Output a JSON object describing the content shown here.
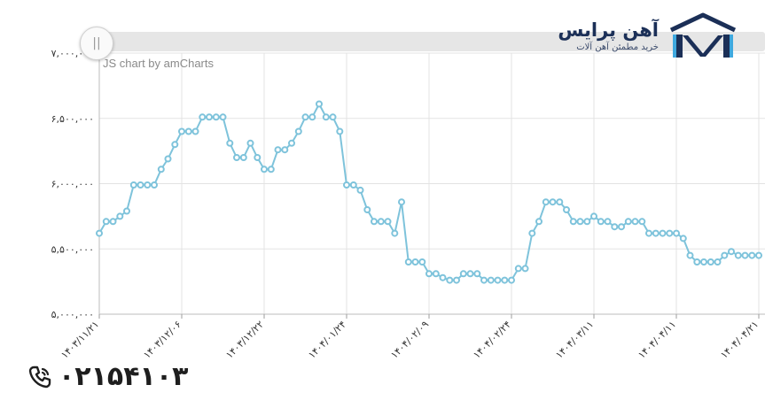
{
  "header": {
    "brand_name": "آهن پرایس",
    "brand_tagline": "خرید مطمئن آهن آلات",
    "logo_icon": "roof-house-logo-icon",
    "credit": "JS chart by amCharts",
    "scroll_grip_glyph": "||"
  },
  "footer": {
    "phone_icon": "phone-icon",
    "phone_number": "۰۲۱۵۴۱۰۳"
  },
  "colors": {
    "line": "#7ec3db",
    "marker_fill": "#ffffff",
    "grid": "#e3e3e3",
    "axis_text": "#333333",
    "brand": "#1b2f57"
  },
  "chart_data": {
    "type": "line",
    "ylim": [
      5000000,
      7000000
    ],
    "y_ticks": [
      {
        "value": 5000000,
        "label": "۵,۰۰۰,۰۰۰"
      },
      {
        "value": 5500000,
        "label": "۵,۵۰۰,۰۰۰"
      },
      {
        "value": 6000000,
        "label": "۶,۰۰۰,۰۰۰"
      },
      {
        "value": 6500000,
        "label": "۶,۵۰۰,۰۰۰"
      },
      {
        "value": 7000000,
        "label": "۷,۰۰۰,۰۰۰"
      }
    ],
    "x_ticks": [
      {
        "index": 0,
        "label": "۱۴۰۳/۱۱/۲۱"
      },
      {
        "index": 12,
        "label": "۱۴۰۳/۱۲/۰۶"
      },
      {
        "index": 24,
        "label": "۱۴۰۳/۱۲/۲۲"
      },
      {
        "index": 36,
        "label": "۱۴۰۴/۰۱/۲۴"
      },
      {
        "index": 48,
        "label": "۱۴۰۴/۰۲/۰۹"
      },
      {
        "index": 60,
        "label": "۱۴۰۴/۰۲/۲۴"
      },
      {
        "index": 72,
        "label": "۱۴۰۴/۰۳/۱۱"
      },
      {
        "index": 84,
        "label": "۱۴۰۴/۰۴/۱۱"
      },
      {
        "index": 96,
        "label": "۱۴۰۴/۰۴/۲۱"
      }
    ],
    "values": [
      5620000,
      5710000,
      5710000,
      5750000,
      5790000,
      5990000,
      5990000,
      5990000,
      5990000,
      6110000,
      6190000,
      6300000,
      6400000,
      6400000,
      6400000,
      6510000,
      6510000,
      6510000,
      6510000,
      6310000,
      6200000,
      6200000,
      6310000,
      6200000,
      6110000,
      6110000,
      6260000,
      6260000,
      6310000,
      6400000,
      6510000,
      6510000,
      6610000,
      6510000,
      6510000,
      6400000,
      5990000,
      5990000,
      5950000,
      5800000,
      5710000,
      5710000,
      5710000,
      5620000,
      5860000,
      5400000,
      5400000,
      5400000,
      5310000,
      5310000,
      5280000,
      5260000,
      5260000,
      5310000,
      5310000,
      5310000,
      5260000,
      5260000,
      5260000,
      5260000,
      5260000,
      5350000,
      5350000,
      5620000,
      5710000,
      5860000,
      5860000,
      5860000,
      5800000,
      5710000,
      5710000,
      5710000,
      5750000,
      5710000,
      5710000,
      5670000,
      5670000,
      5710000,
      5710000,
      5710000,
      5620000,
      5620000,
      5620000,
      5620000,
      5620000,
      5580000,
      5450000,
      5400000,
      5400000,
      5400000,
      5400000,
      5450000,
      5480000,
      5450000,
      5450000,
      5450000,
      5450000
    ],
    "grid": true,
    "legend": "none"
  }
}
